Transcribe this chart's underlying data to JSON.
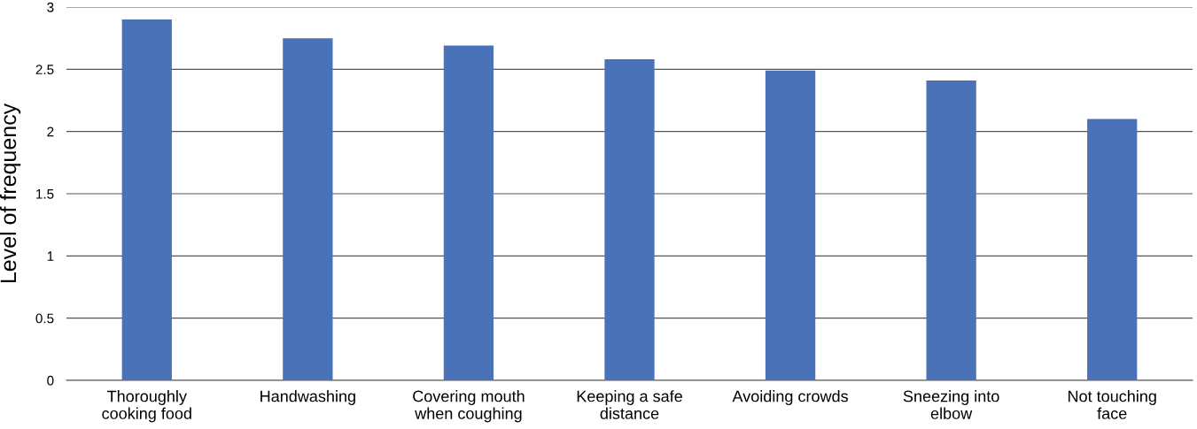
{
  "chart_data": {
    "type": "bar",
    "ylabel": "Level of frequency",
    "categories": [
      "Thoroughly\ncooking food",
      "Handwashing",
      "Covering mouth\nwhen coughing",
      "Keeping a safe\ndistance",
      "Avoiding crowds",
      "Sneezing into\nelbow",
      "Not touching\nface"
    ],
    "values": [
      2.9,
      2.75,
      2.69,
      2.58,
      2.49,
      2.41,
      2.1
    ],
    "color": "#4a72b8",
    "ylim": [
      0,
      3
    ],
    "yticks": [
      0,
      0.5,
      1,
      1.5,
      2,
      2.5,
      3
    ],
    "grid": "y"
  }
}
